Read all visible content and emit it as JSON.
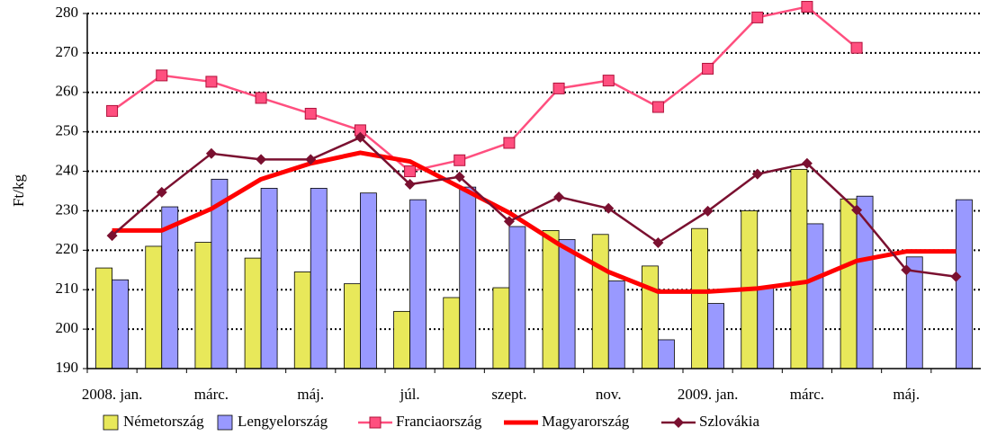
{
  "chart_data": {
    "type": "bar_line",
    "y_label": "Ft/kg",
    "categories": [
      "2008. jan.",
      null,
      "márc.",
      null,
      "máj.",
      null,
      "júl.",
      null,
      "szept.",
      null,
      "nov.",
      null,
      "2009. jan.",
      null,
      "márc.",
      null,
      "máj.",
      null
    ],
    "ylim": [
      190,
      280
    ],
    "yticks": [
      190,
      200,
      210,
      220,
      230,
      240,
      250,
      260,
      270,
      280
    ],
    "grid": true,
    "legend": "bottom",
    "series": [
      {
        "name": "Németország",
        "kind": "bar",
        "color": "#e8e85a",
        "values": [
          215.5,
          221,
          222,
          218,
          214.5,
          211.5,
          204.5,
          208,
          210.5,
          225,
          224,
          216,
          225.5,
          230,
          240.5,
          233,
          null,
          null
        ]
      },
      {
        "name": "Lengyelország",
        "kind": "bar",
        "color": "#9999ff",
        "values": [
          212.5,
          231,
          238,
          235.7,
          235.7,
          234.5,
          232.8,
          236,
          226,
          222.7,
          212.2,
          197.3,
          206.5,
          210.7,
          226.7,
          233.7,
          218.3,
          232.8
        ]
      },
      {
        "name": "Franciaország",
        "kind": "line",
        "marker": "square",
        "color": "#ff4f7f",
        "values": [
          255.3,
          264.3,
          262.7,
          258.6,
          254.6,
          250.4,
          240,
          242.8,
          247.2,
          261,
          263,
          256.3,
          266,
          279,
          281.7,
          271.3,
          null,
          null
        ]
      },
      {
        "name": "Magyarország",
        "kind": "line",
        "marker": "none",
        "color": "#ff0000",
        "values": [
          225,
          225,
          230.5,
          238,
          242,
          244.7,
          242.5,
          236,
          229.5,
          221.5,
          214.5,
          209.5,
          209.5,
          210.3,
          212,
          217.3,
          219.7,
          219.7
        ]
      },
      {
        "name": "Szlovákia",
        "kind": "line",
        "marker": "diamond",
        "color": "#7a1030",
        "values": [
          223.7,
          234.7,
          244.5,
          243,
          243,
          248.6,
          236.7,
          238.6,
          227.3,
          233.5,
          230.6,
          221.9,
          229.9,
          239.3,
          242,
          230.2,
          215,
          213.3
        ]
      }
    ]
  }
}
